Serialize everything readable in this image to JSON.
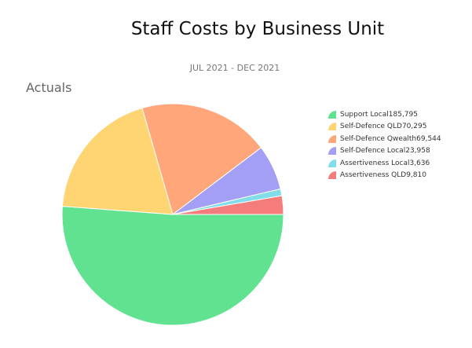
{
  "chart_data": {
    "type": "pie",
    "title": "Staff Costs by Business Unit",
    "subtitle": "JUL 2021 - DEC 2021",
    "section_label": "Actuals",
    "start_angle_deg": 90,
    "direction": "clockwise",
    "legend_position": "right",
    "slices": [
      {
        "label": "Support Local",
        "value": 185795,
        "value_text": "185,795",
        "color": "#61e291"
      },
      {
        "label": "Self-Defence QLD",
        "value": 70295,
        "value_text": "70,295",
        "color": "#ffd472"
      },
      {
        "label": "Self-Defence Qwealth",
        "value": 69544,
        "value_text": "69,544",
        "color": "#ffa67a"
      },
      {
        "label": "Self-Defence Local",
        "value": 23958,
        "value_text": "23,958",
        "color": "#a29ff5"
      },
      {
        "label": "Assertiveness Local",
        "value": 3636,
        "value_text": "3,636",
        "color": "#80dde9"
      },
      {
        "label": "Assertiveness QLD",
        "value": 9810,
        "value_text": "9,810",
        "color": "#f47c7c"
      }
    ]
  }
}
